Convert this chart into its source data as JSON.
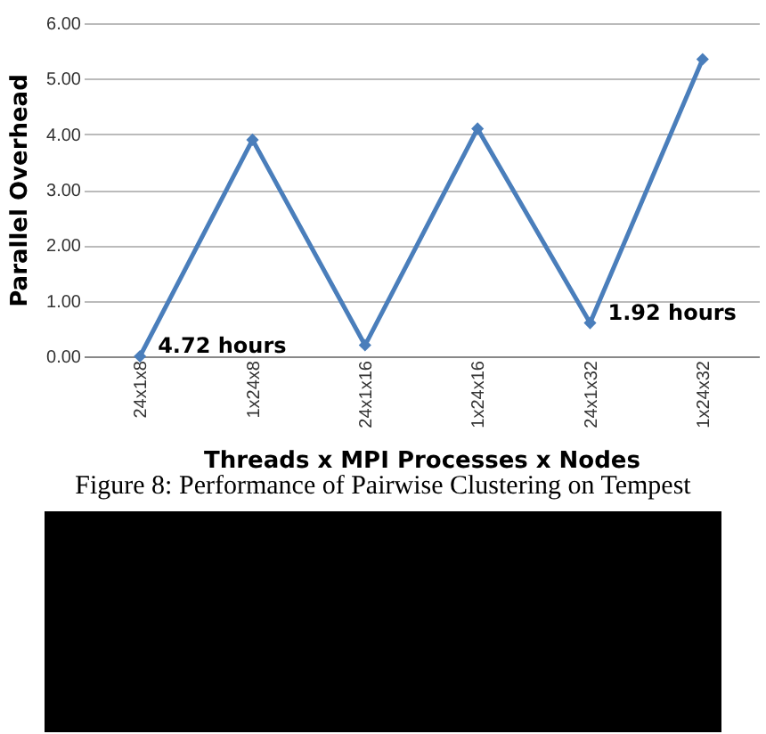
{
  "chart_data": {
    "type": "line",
    "xlabel": "Threads x MPI Processes x Nodes",
    "ylabel": "Parallel Overhead",
    "categories": [
      "24x1x8",
      "1x24x8",
      "24x1x16",
      "1x24x16",
      "24x1x32",
      "1x24x32"
    ],
    "series": [
      {
        "color": "#4a7ebb",
        "values": [
          0,
          3.9,
          0.2,
          4.1,
          0.6,
          5.35
        ]
      }
    ],
    "ylim": [
      0,
      6
    ],
    "yticks": [
      {
        "value": 0,
        "label": "0.00"
      },
      {
        "value": 1,
        "label": "1.00"
      },
      {
        "value": 2,
        "label": "2.00"
      },
      {
        "value": 3,
        "label": "3.00"
      },
      {
        "value": 4,
        "label": "4.00"
      },
      {
        "value": 5,
        "label": "5.00"
      },
      {
        "value": 6,
        "label": "6.00"
      }
    ],
    "grid": "y",
    "marker": "diamond",
    "line_style": "solid",
    "annotations": [
      {
        "text": "4.72 hours",
        "x": "24x1x8",
        "y": 0
      },
      {
        "text": "1.92 hours",
        "x": "24x1x32",
        "y": 0.6
      },
      "Figure 8: Performance of Pairwise Clustering on Tempest"
    ]
  }
}
